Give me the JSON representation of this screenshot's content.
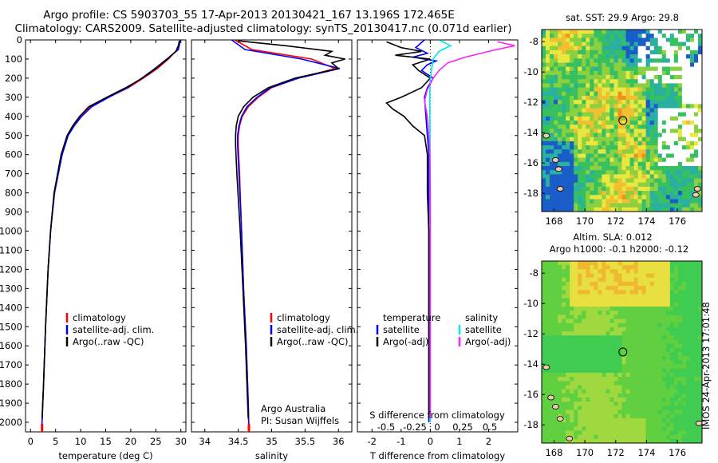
{
  "header": {
    "title_line1": "Argo profile: CS 5903703_55 17-Apr-2013 20130421_167 13.196S 172.465E",
    "title_line2": "Climatology: CARS2009. Satellite-adjusted climatology: synTS_20130417.nc (0.071d earlier)"
  },
  "footer_stamp": "IMOS 24-Apr-2013 17:01:48",
  "colors": {
    "climatology": "#ff0000",
    "satellite": "#0000ff",
    "argo": "#000000",
    "satellite_sal": "#00e5ee",
    "argo_sal": "#ff20ff"
  },
  "chart_data": [
    {
      "id": "temperature",
      "type": "line",
      "xlabel": "temperature (deg C)",
      "ylabel": "",
      "xlim": [
        -1,
        31
      ],
      "xticks": [
        0,
        5,
        10,
        15,
        20,
        25,
        30
      ],
      "ylim": [
        2050,
        0
      ],
      "yticks": [
        0,
        100,
        200,
        300,
        400,
        500,
        600,
        700,
        800,
        900,
        1000,
        1100,
        1200,
        1300,
        1400,
        1500,
        1600,
        1700,
        1800,
        1900,
        2000
      ],
      "legend": [
        "climatology",
        "satellite-adj. clim.",
        "Argo(..raw -QC)"
      ],
      "series": [
        {
          "name": "climatology",
          "color": "#ff0000",
          "depth": [
            0,
            50,
            100,
            150,
            200,
            250,
            300,
            350,
            400,
            450,
            500,
            600,
            800,
            1000,
            1200,
            1500,
            1800,
            2000,
            2050
          ],
          "values": [
            29.8,
            29.3,
            27.5,
            25.3,
            22.5,
            19.5,
            15.5,
            12.0,
            10.0,
            8.6,
            7.4,
            6.2,
            4.7,
            4.0,
            3.5,
            3.0,
            2.6,
            2.3,
            2.3
          ]
        },
        {
          "name": "satellite-adj. clim.",
          "color": "#0000ff",
          "depth": [
            0,
            50,
            100,
            150,
            200,
            250,
            300,
            350,
            400,
            450,
            500,
            600,
            800,
            1000,
            1200,
            1500,
            1800,
            2000,
            2050
          ],
          "values": [
            29.9,
            29.5,
            27.2,
            24.8,
            22.2,
            19.3,
            15.6,
            12.2,
            10.2,
            8.7,
            7.5,
            6.3,
            4.8,
            4.0,
            3.5,
            3.0,
            2.6,
            2.3,
            2.3
          ]
        },
        {
          "name": "Argo(..raw -QC)",
          "color": "#000000",
          "depth": [
            5,
            30,
            60,
            100,
            150,
            200,
            250,
            300,
            350,
            400,
            450,
            500,
            600,
            800,
            1000,
            1200,
            1500,
            1800,
            1980
          ],
          "values": [
            29.7,
            29.5,
            29.0,
            27.3,
            25.0,
            22.3,
            19.0,
            15.2,
            11.6,
            9.8,
            8.4,
            7.3,
            6.1,
            4.7,
            4.0,
            3.5,
            3.0,
            2.6,
            2.3
          ]
        }
      ]
    },
    {
      "id": "salinity",
      "type": "line",
      "xlabel": "salinity",
      "ylabel": "",
      "xlim": [
        33.8,
        36.2
      ],
      "xticks": [
        34,
        34.5,
        35,
        35.5,
        36
      ],
      "ylim": [
        2050,
        0
      ],
      "legend": [
        "climatology",
        "satellite-adj. clim.",
        "Argo(..raw -QC)"
      ],
      "annotation": [
        "Argo Australia",
        "PI: Susan Wijffels"
      ],
      "series": [
        {
          "name": "climatology",
          "color": "#ff0000",
          "depth": [
            0,
            50,
            100,
            150,
            200,
            250,
            300,
            350,
            400,
            450,
            500,
            550,
            700,
            1000,
            1300,
            1600,
            1900,
            2050
          ],
          "values": [
            34.45,
            34.7,
            35.6,
            35.95,
            35.4,
            35.0,
            34.8,
            34.65,
            34.56,
            34.52,
            34.5,
            34.5,
            34.52,
            34.55,
            34.58,
            34.62,
            34.65,
            34.66
          ]
        },
        {
          "name": "satellite-adj. clim.",
          "color": "#0000ff",
          "depth": [
            0,
            50,
            100,
            150,
            200,
            250,
            300,
            350,
            400,
            450,
            500,
            550,
            700,
            1000,
            1300,
            1600,
            1900,
            2050
          ],
          "values": [
            34.4,
            34.6,
            35.45,
            36.02,
            35.4,
            34.98,
            34.78,
            34.63,
            34.55,
            34.51,
            34.49,
            34.49,
            34.51,
            34.55,
            34.58,
            34.62,
            34.65,
            34.66
          ]
        },
        {
          "name": "Argo(..raw -QC)",
          "color": "#000000",
          "depth": [
            5,
            30,
            60,
            80,
            100,
            120,
            150,
            200,
            250,
            300,
            350,
            400,
            450,
            500,
            550,
            700,
            1000,
            1300,
            1600,
            1900,
            1980
          ],
          "values": [
            34.5,
            35.2,
            35.9,
            35.8,
            36.1,
            35.9,
            36.0,
            35.35,
            34.95,
            34.72,
            34.58,
            34.5,
            34.47,
            34.46,
            34.46,
            34.48,
            34.53,
            34.57,
            34.61,
            34.64,
            34.65
          ]
        }
      ]
    },
    {
      "id": "difference",
      "type": "line",
      "xlabel": "T difference from climatology",
      "xlabel_top": "S difference from climatology",
      "xlim": [
        -2.5,
        3
      ],
      "xticks": [
        -2,
        -1,
        0,
        1,
        2
      ],
      "sticks": [
        "-0.5",
        "-0.25",
        "0",
        "0.25",
        "0.5"
      ],
      "ylim": [
        2050,
        0
      ],
      "legend_temperature_title": "temperature",
      "legend_salinity_title": "salinity",
      "legend_temperature": [
        "satellite",
        "Argo(-adj)"
      ],
      "legend_salinity": [
        "satellite",
        "Argo(-adj)"
      ],
      "series": [
        {
          "name": "T satellite",
          "color": "#0000ff",
          "depth": [
            0,
            40,
            70,
            90,
            110,
            130,
            160,
            200,
            250,
            300,
            400,
            500,
            600,
            800,
            1000,
            1500,
            2000
          ],
          "values": [
            -0.2,
            -0.5,
            -0.1,
            -0.6,
            0.2,
            -0.1,
            -0.3,
            0.1,
            -0.1,
            -0.2,
            -0.15,
            -0.1,
            -0.05,
            -0.05,
            -0.05,
            -0.05,
            -0.05
          ]
        },
        {
          "name": "T Argo(-adj)",
          "color": "#000000",
          "depth": [
            10,
            40,
            60,
            80,
            100,
            130,
            160,
            200,
            250,
            300,
            330,
            360,
            400,
            450,
            500,
            550,
            600,
            700,
            800,
            1000,
            1500,
            1980
          ],
          "values": [
            -1.5,
            -1.0,
            -0.3,
            -1.2,
            0.0,
            -0.6,
            -0.4,
            0.0,
            -0.3,
            -1.0,
            -1.5,
            -1.3,
            -0.9,
            -0.6,
            -0.2,
            -0.15,
            -0.1,
            -0.1,
            -0.1,
            -0.05,
            -0.05,
            -0.05
          ]
        },
        {
          "name": "S satellite",
          "color": "#00e5ee",
          "depth": [
            0,
            30,
            60,
            100,
            150,
            200,
            300,
            500,
            800,
            1200,
            1600,
            2000
          ],
          "values": [
            0.3,
            0.7,
            0.3,
            0.1,
            0.05,
            0.0,
            -0.02,
            -0.01,
            0.0,
            0.0,
            0.0,
            0.0
          ]
        },
        {
          "name": "S Argo(-adj)",
          "color": "#ff20ff",
          "depth": [
            10,
            30,
            60,
            90,
            120,
            160,
            200,
            260,
            320,
            400,
            500,
            600,
            800,
            1000,
            1500,
            1980
          ],
          "values": [
            2.3,
            2.9,
            2.0,
            1.2,
            0.6,
            0.3,
            0.1,
            -0.1,
            -0.2,
            -0.1,
            -0.05,
            -0.02,
            0.0,
            0.0,
            0.0,
            0.0
          ]
        }
      ]
    },
    {
      "id": "sst_map",
      "type": "heatmap",
      "title": "sat. SST: 29.9 Argo: 29.8",
      "xlim": [
        167.2,
        177.6
      ],
      "ylim": [
        -19.2,
        -7.2
      ],
      "xticks": [
        168,
        170,
        172,
        174,
        176
      ],
      "yticks": [
        -8,
        -10,
        -12,
        -14,
        -16,
        -18
      ],
      "argo_position": [
        172.465,
        -13.196
      ]
    },
    {
      "id": "sla_map",
      "type": "heatmap",
      "title_line1": "Altim. SLA: 0.012",
      "title_line2": "Argo h1000: -0.1 h2000: -0.12",
      "xlim": [
        167.2,
        177.6
      ],
      "ylim": [
        -19.2,
        -7.2
      ],
      "xticks": [
        168,
        170,
        172,
        174,
        176
      ],
      "yticks": [
        -8,
        -10,
        -12,
        -14,
        -16,
        -18
      ],
      "argo_position": [
        172.465,
        -13.196
      ]
    }
  ]
}
